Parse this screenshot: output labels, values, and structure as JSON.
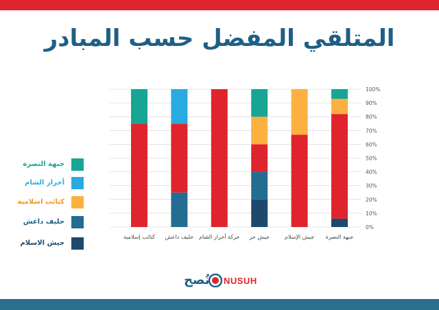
{
  "title": "المتلقي المفضل حسب المبادر",
  "brand": {
    "arabic": "نُصح",
    "latin": "NUSUH"
  },
  "colors": {
    "nusra": "#17a594",
    "ahrar": "#29abe2",
    "islamic_brigades": "#fbb040",
    "isis_ally": "#236d92",
    "army_of_islam": "#1c4a6e",
    "red": "#e0242d"
  },
  "legend": [
    {
      "label": "جبهة النصرة",
      "color": "#17a594"
    },
    {
      "label": "أحرار الشام",
      "color": "#29abe2"
    },
    {
      "label": "كتائب اسلامية",
      "color": "#fbb040"
    },
    {
      "label": "حليف داعش",
      "color": "#236d92"
    },
    {
      "label": "جيش الاسلام",
      "color": "#1c4a6e"
    }
  ],
  "chart_data": {
    "type": "bar",
    "stacked": true,
    "categories": [
      "كتائب إسلامية",
      "حليف داعش",
      "حركة أحرار الشام",
      "جيش حر",
      "جيش الإسلام",
      "جبهة النصرة"
    ],
    "ylim": [
      0,
      100
    ],
    "ytick_labels": [
      "0%",
      "10%",
      "20%",
      "30%",
      "40%",
      "50%",
      "60%",
      "70%",
      "80%",
      "90%",
      "100%"
    ],
    "grid": true,
    "series": [
      {
        "key": "army_of_islam",
        "color": "#1c4a6e",
        "values": [
          0,
          0,
          0,
          20,
          0,
          6
        ]
      },
      {
        "key": "isis_ally",
        "color": "#236d92",
        "values": [
          0,
          25,
          0,
          20,
          0,
          0
        ]
      },
      {
        "key": "red",
        "color": "#e0242d",
        "values": [
          75,
          50,
          100,
          20,
          67,
          76
        ]
      },
      {
        "key": "islamic_brigades",
        "color": "#fbb040",
        "values": [
          0,
          0,
          0,
          20,
          33,
          11
        ]
      },
      {
        "key": "ahrar",
        "color": "#29abe2",
        "values": [
          0,
          25,
          0,
          0,
          0,
          0
        ]
      },
      {
        "key": "nusra",
        "color": "#17a594",
        "values": [
          25,
          0,
          0,
          20,
          0,
          7
        ]
      }
    ]
  }
}
